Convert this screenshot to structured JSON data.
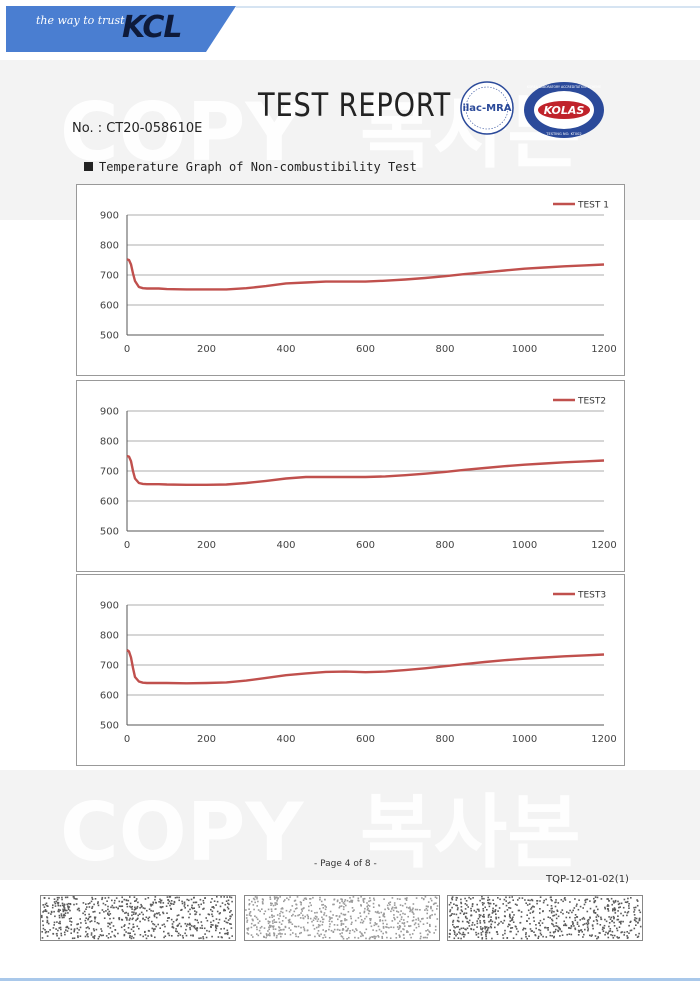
{
  "header": {
    "tagline": "the way to trust",
    "logo": "KCL",
    "title": "TEST REPORT",
    "report_number": "No. : CT20-058610E"
  },
  "accreditation": {
    "ilac_label": "ilac-MRA",
    "kolas_label": "KOLAS",
    "kolas_ring_text": "KOREA LABORATORY ACCREDITATION SCHEME",
    "kolas_test_no": "TESTING NO. KT002"
  },
  "watermark": {
    "text_en": "COPY",
    "text_ko": "복사본"
  },
  "section": {
    "title": "Temperature Graph of Non-combustibility Test"
  },
  "chart_data": [
    {
      "type": "line",
      "x_ticks": [
        0,
        200,
        400,
        600,
        800,
        1000,
        1200
      ],
      "y_ticks": [
        500,
        600,
        700,
        800,
        900
      ],
      "xlim": [
        0,
        1200
      ],
      "ylim": [
        500,
        900
      ],
      "grid": true,
      "legend": "top-right",
      "series": [
        {
          "name": "TEST 1",
          "color": "#c0504d",
          "x": [
            0,
            5,
            10,
            15,
            20,
            30,
            40,
            50,
            60,
            80,
            100,
            150,
            200,
            250,
            300,
            350,
            400,
            450,
            500,
            550,
            600,
            650,
            700,
            750,
            800,
            850,
            900,
            950,
            1000,
            1050,
            1100,
            1150,
            1200
          ],
          "y": [
            752,
            750,
            735,
            705,
            680,
            660,
            656,
            655,
            655,
            655,
            653,
            652,
            652,
            652,
            656,
            663,
            672,
            675,
            678,
            678,
            678,
            681,
            685,
            690,
            696,
            703,
            709,
            715,
            721,
            725,
            729,
            732,
            735
          ]
        }
      ]
    },
    {
      "type": "line",
      "x_ticks": [
        0,
        200,
        400,
        600,
        800,
        1000,
        1200
      ],
      "y_ticks": [
        500,
        600,
        700,
        800,
        900
      ],
      "xlim": [
        0,
        1200
      ],
      "ylim": [
        500,
        900
      ],
      "grid": true,
      "legend": "top-right",
      "series": [
        {
          "name": "TEST2",
          "color": "#c0504d",
          "x": [
            0,
            5,
            10,
            15,
            20,
            30,
            40,
            50,
            60,
            80,
            100,
            150,
            200,
            250,
            300,
            350,
            400,
            450,
            500,
            550,
            600,
            650,
            700,
            750,
            800,
            850,
            900,
            950,
            1000,
            1050,
            1100,
            1150,
            1200
          ],
          "y": [
            750,
            748,
            733,
            700,
            675,
            660,
            657,
            656,
            656,
            656,
            655,
            654,
            654,
            655,
            660,
            667,
            675,
            680,
            680,
            680,
            680,
            682,
            686,
            691,
            697,
            704,
            710,
            716,
            721,
            725,
            729,
            732,
            735
          ]
        }
      ]
    },
    {
      "type": "line",
      "x_ticks": [
        0,
        200,
        400,
        600,
        800,
        1000,
        1200
      ],
      "y_ticks": [
        500,
        600,
        700,
        800,
        900
      ],
      "xlim": [
        0,
        1200
      ],
      "ylim": [
        500,
        900
      ],
      "grid": true,
      "legend": "top-right",
      "series": [
        {
          "name": "TEST3",
          "color": "#c0504d",
          "x": [
            0,
            5,
            10,
            15,
            20,
            30,
            40,
            50,
            60,
            80,
            100,
            150,
            200,
            250,
            300,
            350,
            400,
            450,
            500,
            550,
            600,
            650,
            700,
            750,
            800,
            850,
            900,
            950,
            1000,
            1050,
            1100,
            1150,
            1200
          ],
          "y": [
            750,
            745,
            725,
            690,
            660,
            645,
            641,
            640,
            640,
            640,
            640,
            639,
            640,
            642,
            648,
            657,
            666,
            672,
            677,
            678,
            676,
            678,
            683,
            689,
            696,
            703,
            710,
            716,
            721,
            725,
            729,
            732,
            735
          ]
        }
      ]
    }
  ],
  "footer": {
    "page": "- Page 4 of 8 -",
    "doc_code": "TQP-12-01-02(1)"
  },
  "colors": {
    "banner": "#4a7ed1",
    "line": "#c0504d",
    "grid": "#909090",
    "axis": "#555555"
  }
}
